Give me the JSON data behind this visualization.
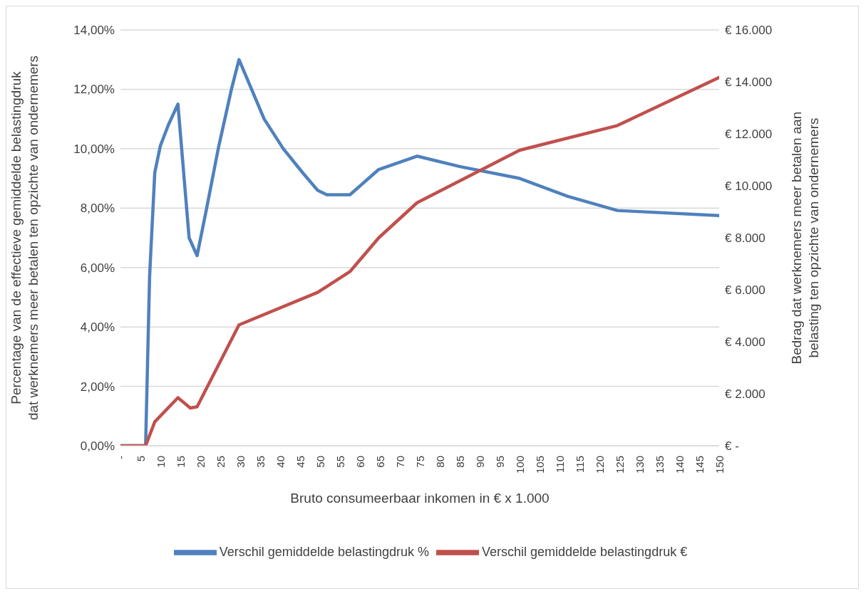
{
  "chart_data": {
    "type": "line",
    "xlabel": "Bruto consumeerbaar inkomen in € x 1.000",
    "ylabel": "Percentage van de effectieve gemiddelde belastingdruk dat werknemers meer betalen ten opzichte van ondernemers",
    "y2label": "Bedrag dat werknemers meer betalen aan belasting ten opzichte van ondernemers",
    "xlim": [
      0,
      150
    ],
    "xticks": [
      {
        "value": 0,
        "label": "-"
      },
      5,
      10,
      15,
      20,
      25,
      30,
      35,
      40,
      45,
      50,
      55,
      60,
      65,
      70,
      75,
      80,
      85,
      90,
      95,
      100,
      105,
      110,
      115,
      120,
      125,
      130,
      135,
      140,
      145,
      150
    ],
    "ylim": [
      0,
      14
    ],
    "yticks": [
      {
        "value": 0,
        "label": "0,00%"
      },
      {
        "value": 2,
        "label": "2,00%"
      },
      {
        "value": 4,
        "label": "4,00%"
      },
      {
        "value": 6,
        "label": "6,00%"
      },
      {
        "value": 8,
        "label": "8,00%"
      },
      {
        "value": 10,
        "label": "10,00%"
      },
      {
        "value": 12,
        "label": "12,00%"
      },
      {
        "value": 14,
        "label": "14,00%"
      }
    ],
    "y2lim": [
      0,
      16000
    ],
    "y2ticks": [
      {
        "value": 0,
        "label": "€ -"
      },
      {
        "value": 2000,
        "label": "€ 2.000"
      },
      {
        "value": 4000,
        "label": "€ 4.000"
      },
      {
        "value": 6000,
        "label": "€ 6.000"
      },
      {
        "value": 8000,
        "label": "€ 8.000"
      },
      {
        "value": 10000,
        "label": "€ 10.000"
      },
      {
        "value": 12000,
        "label": "€ 12.000"
      },
      {
        "value": 14000,
        "label": "€ 14.000"
      },
      {
        "value": 16000,
        "label": "€ 16.000"
      }
    ],
    "grid": "y",
    "legend": "bottom",
    "series": [
      {
        "name": "Verschil gemiddelde belastingdruk %",
        "color": "#4f81bd",
        "x": [
          0,
          6.3,
          7.3,
          8.6,
          10,
          12,
          14.4,
          17.2,
          19.2,
          21.6,
          24.5,
          27.8,
          29.7,
          36,
          40.8,
          45.6,
          49.4,
          51.7,
          57.5,
          64.7,
          74.3,
          85,
          100,
          112,
          124.5,
          150
        ],
        "values": [
          0,
          0,
          5.7,
          9.2,
          10.1,
          10.8,
          11.5,
          7.0,
          6.4,
          8.0,
          10.0,
          12.0,
          13.0,
          11.0,
          10.0,
          9.2,
          8.6,
          8.45,
          8.45,
          9.3,
          9.75,
          9.4,
          9.0,
          8.4,
          7.92,
          7.75
        ]
      },
      {
        "name": "Verschil gemiddelde belastingdruk €",
        "color": "#c0504d",
        "axis": "y2",
        "x": [
          0,
          6.3,
          8.6,
          14.4,
          17.5,
          19.2,
          29.7,
          49.4,
          57.5,
          64.7,
          74.3,
          100,
          124.5,
          150
        ],
        "values": [
          0,
          0,
          920,
          1850,
          1450,
          1500,
          4650,
          5900,
          6700,
          8000,
          9350,
          11370,
          12320,
          14170
        ]
      }
    ]
  }
}
